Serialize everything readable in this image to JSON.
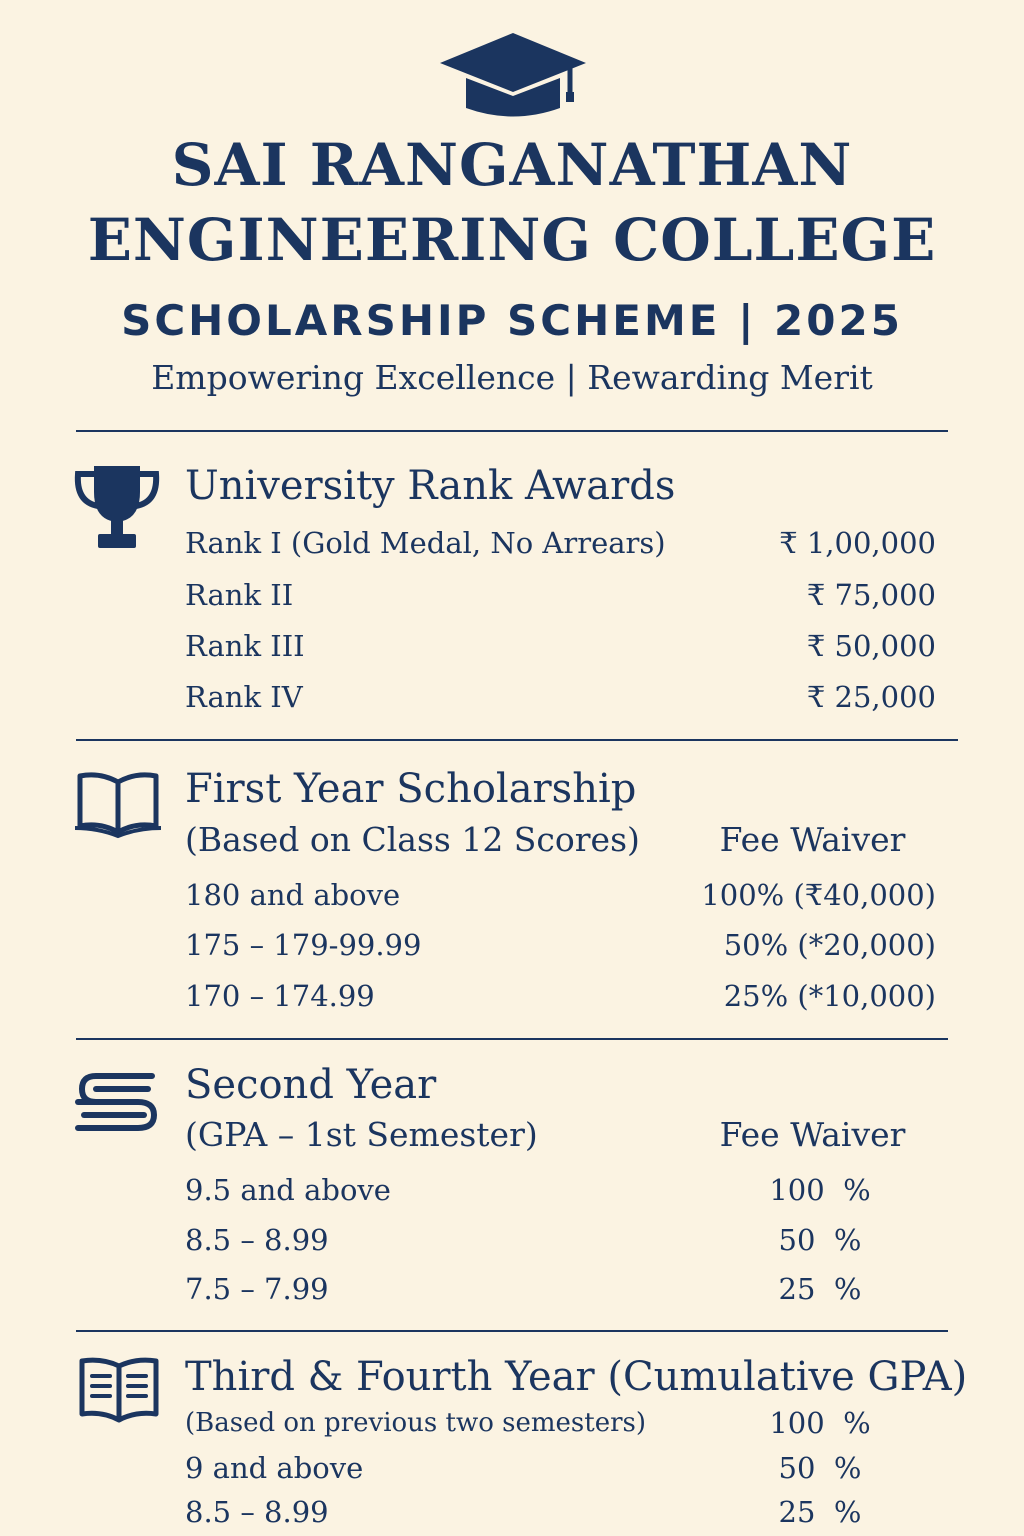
{
  "header": {
    "icon": "graduation-cap-icon",
    "title_line1": "SAI RANGANATHAN",
    "title_line2": "ENGINEERING COLLEGE",
    "subtitle": "SCHOLARSHIP SCHEME | 2025",
    "tagline": "Empowering Excellence | Rewarding Merit"
  },
  "colors": {
    "primary": "#1b355f",
    "background": "#fbf3e2"
  },
  "sections": [
    {
      "icon": "trophy-icon",
      "title": "University Rank Awards",
      "rows": [
        {
          "label": "Rank I (Gold Medal, No Arrears)",
          "value": "₹ 1,00,000"
        },
        {
          "label": "Rank II",
          "value": "₹ 75,000"
        },
        {
          "label": "Rank III",
          "value": "₹ 50,000"
        },
        {
          "label": "Rank IV",
          "value": "₹ 25,000"
        }
      ]
    },
    {
      "icon": "open-book-icon",
      "title": "First Year Scholarship",
      "subtitle": "(Based on Class 12 Scores)",
      "column_header": "Fee Waiver",
      "rows": [
        {
          "label": "180 and above",
          "value": "100% (₹40,000)"
        },
        {
          "label": "175 – 179-99.99",
          "value": "50% (*20,000)"
        },
        {
          "label": "170 – 174.99",
          "value": "25% (*10,000)"
        }
      ]
    },
    {
      "icon": "stacked-books-icon",
      "title": "Second Year",
      "subtitle": "(GPA – 1st Semester)",
      "column_header": "Fee Waiver",
      "rows": [
        {
          "label": "9.5 and above",
          "value": "100  %"
        },
        {
          "label": "8.5 – 8.99",
          "value": "50  %"
        },
        {
          "label": "7.5 – 7.99",
          "value": "25  %"
        }
      ]
    },
    {
      "icon": "book-text-icon",
      "title": "Third & Fourth Year (Cumulative GPA)",
      "subtitle": "(Based on previous two semesters)",
      "subtitle_value": "100  %",
      "rows": [
        {
          "label": "9 and above",
          "value": "50  %"
        },
        {
          "label": "8.5 – 8.99",
          "value": "25  %"
        }
      ]
    }
  ]
}
